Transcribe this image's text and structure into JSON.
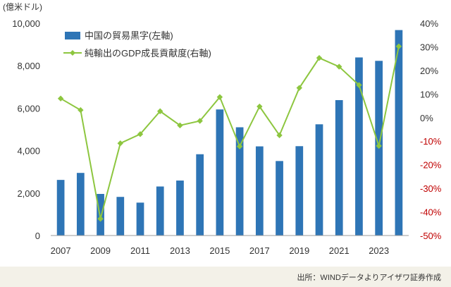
{
  "chart_data": {
    "type": "bar+line",
    "unit_label": "(億米ドル)",
    "categories": [
      2007,
      2008,
      2009,
      2010,
      2011,
      2012,
      2013,
      2014,
      2015,
      2016,
      2017,
      2018,
      2019,
      2020,
      2021,
      2022,
      2023,
      2024
    ],
    "x_tick_labels": [
      "2007",
      "2009",
      "2011",
      "2013",
      "2015",
      "2017",
      "2019",
      "2021",
      "2023"
    ],
    "series": [
      {
        "name": "中国の貿易黒字(左軸)",
        "type": "bar",
        "axis": "left",
        "color": "#2e75b6",
        "values": [
          2620,
          2950,
          1960,
          1820,
          1550,
          2310,
          2590,
          3830,
          5940,
          5100,
          4200,
          3510,
          4210,
          5240,
          6380,
          8390,
          8230,
          9680
        ]
      },
      {
        "name": "純輸出のGDP成長貢献度(右軸)",
        "type": "line",
        "axis": "right",
        "color": "#8dc63f",
        "values": [
          8.1,
          3.2,
          -42.9,
          -10.9,
          -7.0,
          2.7,
          -3.3,
          -1.4,
          8.7,
          -12.2,
          4.7,
          -7.5,
          12.6,
          25.3,
          21.6,
          13.8,
          -12.0,
          30.2
        ]
      }
    ],
    "y_left": {
      "range": [
        0,
        10000
      ],
      "ticks": [
        "0",
        "2,000",
        "4,000",
        "6,000",
        "8,000",
        "10,000"
      ]
    },
    "y_right": {
      "range": [
        -50,
        40
      ],
      "ticks": [
        {
          "label": "-50%",
          "color": "#c00000"
        },
        {
          "label": "-40%",
          "color": "#c00000"
        },
        {
          "label": "-30%",
          "color": "#c00000"
        },
        {
          "label": "-20%",
          "color": "#c00000"
        },
        {
          "label": "-10%",
          "color": "#c00000"
        },
        {
          "label": "0%",
          "color": "#333333"
        },
        {
          "label": "10%",
          "color": "#333333"
        },
        {
          "label": "20%",
          "color": "#333333"
        },
        {
          "label": "30%",
          "color": "#333333"
        },
        {
          "label": "40%",
          "color": "#333333"
        }
      ]
    },
    "grid": false,
    "legend_position": "top-left"
  },
  "source_note": "出所：WINDデータよりアイザワ証券作成"
}
